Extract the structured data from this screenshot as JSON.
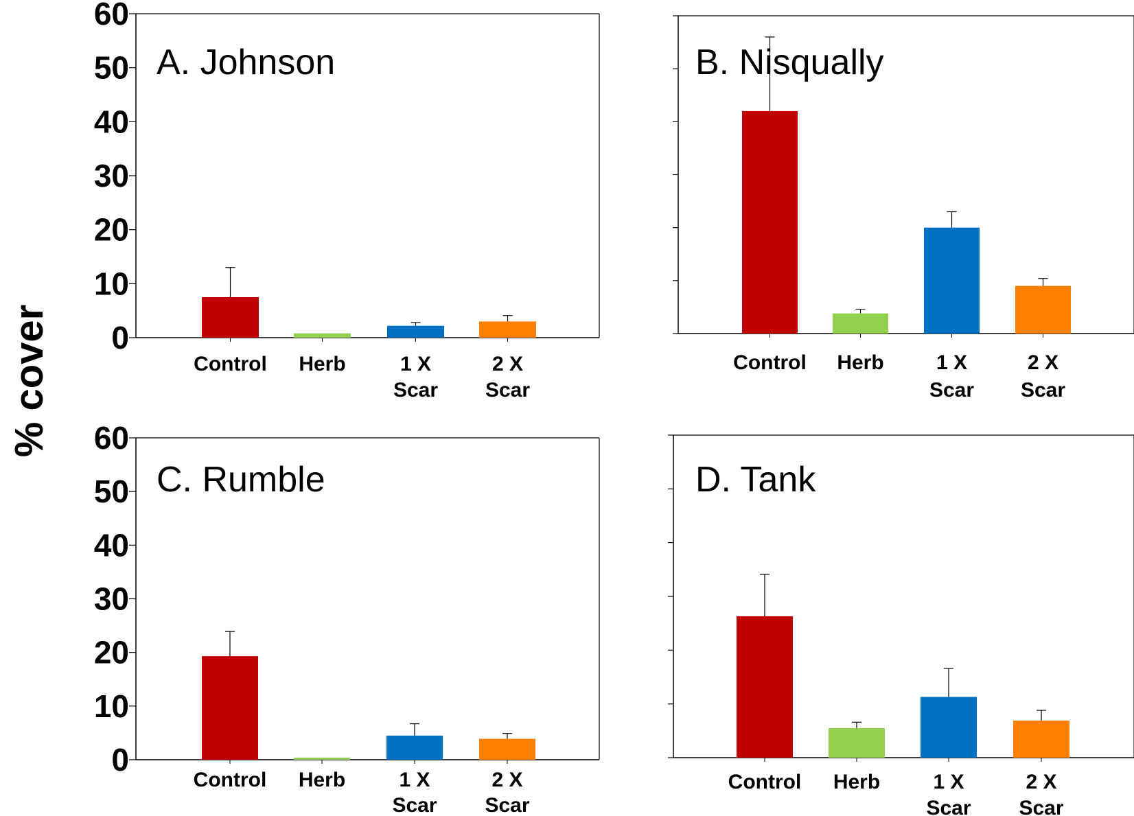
{
  "ylabel": "% cover",
  "colors": {
    "Control": "#c00000",
    "Herb": "#92d050",
    "1 X Scar": "#0070c0",
    "2 X Scar": "#ff8000"
  },
  "chart_data": [
    {
      "type": "bar",
      "title": "A.  Johnson",
      "categories": [
        "Control",
        "Herb",
        "1 X Scar",
        "2 X Scar"
      ],
      "category_lines": [
        [
          "Control"
        ],
        [
          "Herb"
        ],
        [
          "1 X",
          "Scar"
        ],
        [
          "2 X",
          "Scar"
        ]
      ],
      "values": [
        7.5,
        0.8,
        2.2,
        3.0
      ],
      "error": [
        5.5,
        0,
        0.6,
        1.1
      ],
      "ylim": [
        0,
        60
      ],
      "yticks": [
        "0",
        "10",
        "20",
        "30",
        "40",
        "50",
        "60"
      ],
      "ytick_labels_shown": true
    },
    {
      "type": "bar",
      "title": "B.  Nisqually",
      "categories": [
        "Control",
        "Herb",
        "1 X Scar",
        "2 X Scar"
      ],
      "category_lines": [
        [
          "Control"
        ],
        [
          "Herb"
        ],
        [
          "1 X",
          "Scar"
        ],
        [
          "2 X",
          "Scar"
        ]
      ],
      "values": [
        42,
        3.8,
        20,
        9
      ],
      "error": [
        14,
        0.8,
        3,
        1.4
      ],
      "ylim": [
        0,
        60
      ],
      "yticks": [
        "0",
        "10",
        "20",
        "30",
        "40",
        "50",
        "60"
      ],
      "ytick_labels_shown": false
    },
    {
      "type": "bar",
      "title": "C.  Rumble",
      "categories": [
        "Control",
        "Herb",
        "1 X Scar",
        "2 X Scar"
      ],
      "category_lines": [
        [
          "Control"
        ],
        [
          "Herb"
        ],
        [
          "1 X",
          "Scar"
        ],
        [
          "2 X",
          "Scar"
        ]
      ],
      "values": [
        19.3,
        0.4,
        4.5,
        3.9
      ],
      "error": [
        4.6,
        0,
        2.2,
        1.0
      ],
      "ylim": [
        0,
        60
      ],
      "yticks": [
        "0",
        "10",
        "20",
        "30",
        "40",
        "50",
        "60"
      ],
      "ytick_labels_shown": true
    },
    {
      "type": "bar",
      "title": "D.  Tank",
      "categories": [
        "Control",
        "Herb",
        "1 X Scar",
        "2 X Scar"
      ],
      "category_lines": [
        [
          "Control"
        ],
        [
          "Herb"
        ],
        [
          "1 X",
          "Scar"
        ],
        [
          "2 X",
          "Scar"
        ]
      ],
      "values": [
        26.3,
        5.5,
        11.3,
        6.9
      ],
      "error": [
        7.8,
        1.1,
        5.3,
        1.9
      ],
      "ylim": [
        0,
        60
      ],
      "yticks": [
        "0",
        "10",
        "20",
        "30",
        "40",
        "50",
        "60"
      ],
      "ytick_labels_shown": false
    }
  ]
}
